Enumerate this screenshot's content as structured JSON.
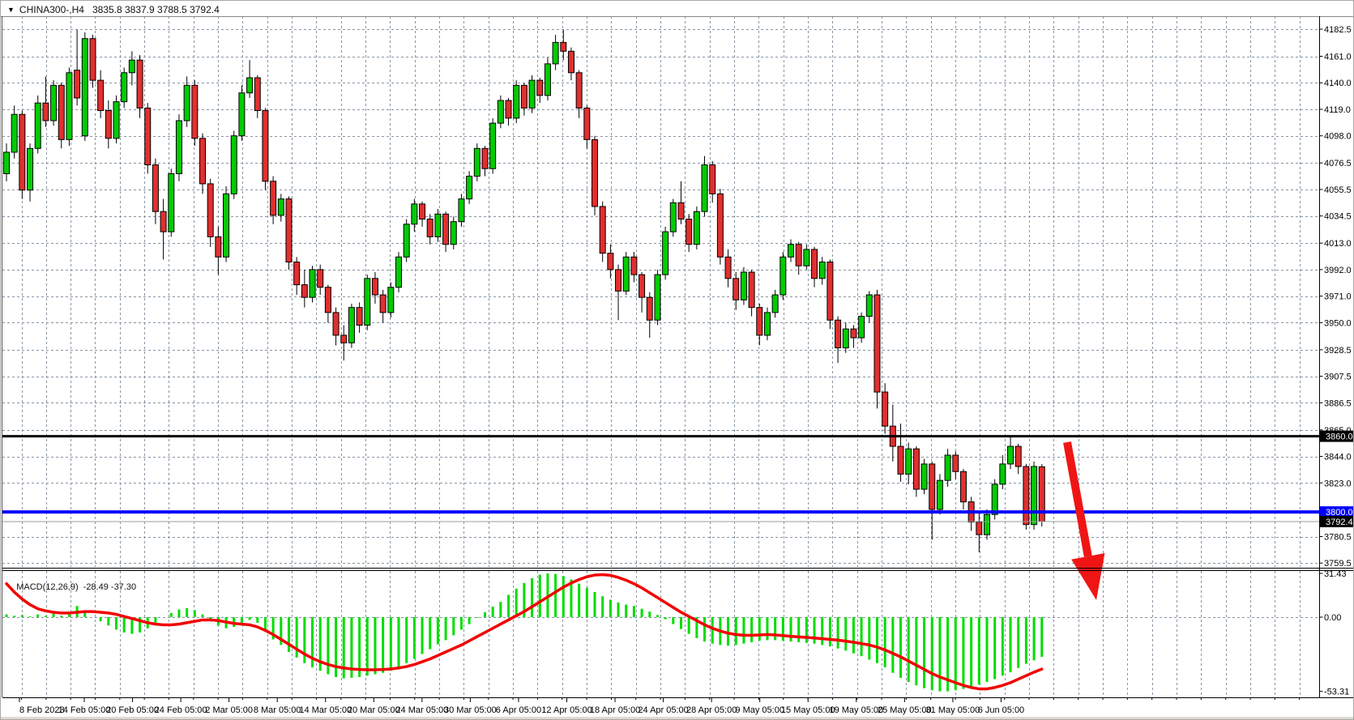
{
  "window": {
    "dropdown_icon": "▼",
    "title_symbol": "CHINA300-,H4",
    "title_ohlc": "3835.8 3837.9 3788.5 3792.4"
  },
  "macd_panel": {
    "label_name": "MACD(12,26,9)",
    "label_values": "-28.49 -37.30",
    "axis_labels": [
      "31.43",
      "0.00",
      "-53.31"
    ]
  },
  "price_axis": {
    "labels": [
      "4182.5",
      "4161.0",
      "4140.0",
      "4119.0",
      "4098.0",
      "4076.5",
      "4055.5",
      "4034.5",
      "4013.0",
      "3992.0",
      "3971.0",
      "3950.0",
      "3928.5",
      "3907.5",
      "3886.5",
      "3865.0",
      "3844.0",
      "3823.0",
      "3780.5",
      "3759.5"
    ],
    "special_lines": [
      {
        "label": "3860.0",
        "price": 3860.0,
        "color": "#000000",
        "kind": "black-hline"
      },
      {
        "label": "3800.0",
        "price": 3800.0,
        "color": "#0000ff",
        "kind": "blue-hline"
      },
      {
        "label": "3792.4",
        "price": 3792.4,
        "color": "#000000",
        "kind": "current-price"
      }
    ]
  },
  "time_axis": {
    "labels": [
      "8 Feb 2023",
      "14 Feb 05:00",
      "20 Feb 05:00",
      "24 Feb 05:00",
      "2 Mar 05:00",
      "8 Mar 05:00",
      "14 Mar 05:00",
      "20 Mar 05:00",
      "24 Mar 05:00",
      "30 Mar 05:00",
      "6 Apr 05:00",
      "12 Apr 05:00",
      "18 Apr 05:00",
      "24 Apr 05:00",
      "28 Apr 05:00",
      "9 May 05:00",
      "15 May 05:00",
      "19 May 05:00",
      "25 May 05:00",
      "31 May 05:00",
      "6 Jun 05:00"
    ]
  },
  "colors": {
    "up": "#00cc00",
    "down": "#e12f2f",
    "wick": "#000000",
    "grid": "#8795a3",
    "histogram": "#00dd00",
    "signal_line": "#f20000",
    "hline_black": "#000000",
    "hline_blue": "#0000ff",
    "current_price_line": "#9b9b9b",
    "arrow": "#f01515",
    "axis_text": "#000000",
    "label_box_text": "#ffffff",
    "frame": "#3c3c3c",
    "bottom_strip": "#dedbd3"
  },
  "chart_data": {
    "type": "candlestick",
    "title": "CHINA300-,H4",
    "timeframe": "H4",
    "last_quote": {
      "open": 3835.8,
      "high": 3837.9,
      "low": 3788.5,
      "close": 3792.4
    },
    "price_range": [
      3759.5,
      4182.5
    ],
    "grid": true,
    "candles_ohlc": [
      [
        4068,
        4092,
        4062,
        4085
      ],
      [
        4085,
        4122,
        4080,
        4115
      ],
      [
        4115,
        4118,
        4048,
        4055
      ],
      [
        4055,
        4092,
        4046,
        4088
      ],
      [
        4088,
        4130,
        4084,
        4124
      ],
      [
        4124,
        4145,
        4105,
        4110
      ],
      [
        4110,
        4142,
        4106,
        4138
      ],
      [
        4138,
        4140,
        4088,
        4095
      ],
      [
        4095,
        4152,
        4090,
        4148
      ],
      [
        4150,
        4182,
        4122,
        4128
      ],
      [
        4098,
        4180,
        4094,
        4175
      ],
      [
        4175,
        4178,
        4136,
        4142
      ],
      [
        4142,
        4150,
        4112,
        4118
      ],
      [
        4118,
        4126,
        4088,
        4096
      ],
      [
        4096,
        4130,
        4092,
        4125
      ],
      [
        4125,
        4152,
        4120,
        4148
      ],
      [
        4148,
        4165,
        4138,
        4158
      ],
      [
        4158,
        4162,
        4112,
        4120
      ],
      [
        4120,
        4124,
        4068,
        4075
      ],
      [
        4075,
        4080,
        4028,
        4038
      ],
      [
        4038,
        4048,
        4000,
        4022
      ],
      [
        4022,
        4072,
        4018,
        4068
      ],
      [
        4068,
        4115,
        4062,
        4110
      ],
      [
        4110,
        4145,
        4105,
        4138
      ],
      [
        4138,
        4142,
        4090,
        4096
      ],
      [
        4096,
        4100,
        4052,
        4060
      ],
      [
        4060,
        4064,
        4010,
        4018
      ],
      [
        4018,
        4026,
        3988,
        4002
      ],
      [
        4002,
        4058,
        3998,
        4052
      ],
      [
        4052,
        4102,
        4048,
        4098
      ],
      [
        4098,
        4138,
        4094,
        4132
      ],
      [
        4132,
        4158,
        4128,
        4144
      ],
      [
        4144,
        4146,
        4112,
        4118
      ],
      [
        4118,
        4120,
        4055,
        4062
      ],
      [
        4062,
        4066,
        4028,
        4035
      ],
      [
        4035,
        4052,
        4030,
        4048
      ],
      [
        4048,
        4050,
        3992,
        3998
      ],
      [
        3998,
        4002,
        3972,
        3980
      ],
      [
        3980,
        3992,
        3962,
        3970
      ],
      [
        3970,
        3995,
        3966,
        3992
      ],
      [
        3992,
        3996,
        3972,
        3978
      ],
      [
        3978,
        3980,
        3950,
        3958
      ],
      [
        3958,
        3962,
        3932,
        3940
      ],
      [
        3940,
        3948,
        3920,
        3934
      ],
      [
        3934,
        3965,
        3930,
        3962
      ],
      [
        3962,
        3966,
        3942,
        3948
      ],
      [
        3948,
        3988,
        3944,
        3985
      ],
      [
        3985,
        3990,
        3965,
        3972
      ],
      [
        3972,
        3976,
        3950,
        3958
      ],
      [
        3958,
        3982,
        3954,
        3978
      ],
      [
        3978,
        4006,
        3974,
        4002
      ],
      [
        4002,
        4032,
        3998,
        4028
      ],
      [
        4028,
        4048,
        4022,
        4044
      ],
      [
        4044,
        4046,
        4026,
        4032
      ],
      [
        4032,
        4036,
        4012,
        4018
      ],
      [
        4018,
        4040,
        4014,
        4036
      ],
      [
        4036,
        4038,
        4006,
        4012
      ],
      [
        4012,
        4034,
        4008,
        4030
      ],
      [
        4030,
        4052,
        4026,
        4048
      ],
      [
        4048,
        4070,
        4044,
        4066
      ],
      [
        4066,
        4092,
        4062,
        4088
      ],
      [
        4088,
        4090,
        4066,
        4072
      ],
      [
        4072,
        4112,
        4068,
        4108
      ],
      [
        4108,
        4130,
        4104,
        4126
      ],
      [
        4126,
        4128,
        4106,
        4112
      ],
      [
        4112,
        4142,
        4108,
        4138
      ],
      [
        4138,
        4140,
        4114,
        4120
      ],
      [
        4120,
        4146,
        4116,
        4142
      ],
      [
        4142,
        4144,
        4124,
        4130
      ],
      [
        4130,
        4160,
        4126,
        4155
      ],
      [
        4155,
        4178,
        4150,
        4172
      ],
      [
        4172,
        4182,
        4158,
        4165
      ],
      [
        4165,
        4168,
        4142,
        4148
      ],
      [
        4148,
        4150,
        4112,
        4120
      ],
      [
        4120,
        4122,
        4088,
        4095
      ],
      [
        4095,
        4098,
        4035,
        4042
      ],
      [
        4042,
        4046,
        3998,
        4005
      ],
      [
        4005,
        4012,
        3985,
        3992
      ],
      [
        3992,
        3996,
        3952,
        3975
      ],
      [
        3975,
        4006,
        3972,
        4002
      ],
      [
        4002,
        4006,
        3982,
        3988
      ],
      [
        3988,
        3990,
        3958,
        3970
      ],
      [
        3970,
        3974,
        3938,
        3952
      ],
      [
        3952,
        3992,
        3948,
        3988
      ],
      [
        3988,
        4026,
        3984,
        4022
      ],
      [
        4022,
        4048,
        4018,
        4045
      ],
      [
        4045,
        4062,
        4028,
        4032
      ],
      [
        4032,
        4036,
        4006,
        4012
      ],
      [
        4012,
        4042,
        4008,
        4038
      ],
      [
        4038,
        4082,
        4034,
        4075
      ],
      [
        4075,
        4078,
        4045,
        4052
      ],
      [
        4052,
        4056,
        3996,
        4002
      ],
      [
        4002,
        4008,
        3978,
        3985
      ],
      [
        3985,
        3990,
        3960,
        3968
      ],
      [
        3968,
        3994,
        3964,
        3990
      ],
      [
        3990,
        3992,
        3955,
        3962
      ],
      [
        3962,
        3965,
        3932,
        3940
      ],
      [
        3940,
        3962,
        3936,
        3958
      ],
      [
        3958,
        3976,
        3954,
        3972
      ],
      [
        3972,
        4006,
        3968,
        4002
      ],
      [
        4002,
        4016,
        3998,
        4012
      ],
      [
        4012,
        4014,
        3988,
        3995
      ],
      [
        3995,
        4012,
        3992,
        4008
      ],
      [
        4008,
        4010,
        3978,
        3985
      ],
      [
        3985,
        4002,
        3980,
        3998
      ],
      [
        3998,
        4000,
        3945,
        3952
      ],
      [
        3952,
        3955,
        3918,
        3930
      ],
      [
        3930,
        3950,
        3926,
        3945
      ],
      [
        3945,
        3948,
        3930,
        3938
      ],
      [
        3938,
        3958,
        3934,
        3955
      ],
      [
        3955,
        3975,
        3950,
        3972
      ],
      [
        3972,
        3976,
        3882,
        3895
      ],
      [
        3895,
        3902,
        3862,
        3868
      ],
      [
        3868,
        3885,
        3840,
        3852
      ],
      [
        3852,
        3870,
        3824,
        3830
      ],
      [
        3830,
        3855,
        3822,
        3850
      ],
      [
        3850,
        3852,
        3812,
        3818
      ],
      [
        3818,
        3842,
        3814,
        3838
      ],
      [
        3838,
        3840,
        3778,
        3802
      ],
      [
        3802,
        3830,
        3798,
        3825
      ],
      [
        3825,
        3850,
        3820,
        3845
      ],
      [
        3845,
        3848,
        3826,
        3832
      ],
      [
        3832,
        3834,
        3802,
        3808
      ],
      [
        3808,
        3812,
        3785,
        3792
      ],
      [
        3792,
        3800,
        3768,
        3782
      ],
      [
        3782,
        3802,
        3778,
        3798
      ],
      [
        3798,
        3826,
        3794,
        3822
      ],
      [
        3822,
        3845,
        3818,
        3838
      ],
      [
        3838,
        3860,
        3834,
        3852
      ],
      [
        3852,
        3854,
        3830,
        3836
      ],
      [
        3836,
        3838,
        3786,
        3790
      ],
      [
        3790,
        3840,
        3786,
        3836
      ],
      [
        3835.8,
        3837.9,
        3788.5,
        3792.4
      ]
    ],
    "indicator": {
      "name": "MACD(12,26,9)",
      "macd_value": -28.49,
      "signal_value": -37.3,
      "range": [
        -53.31,
        31.43
      ],
      "histogram": [
        2,
        1,
        1.5,
        0.5,
        2,
        1,
        2.5,
        1,
        3,
        8,
        4,
        0,
        -3,
        -6,
        -9,
        -11,
        -12,
        -11,
        -8,
        -4,
        0,
        3,
        5.5,
        6.5,
        5,
        2,
        -2,
        -6,
        -8,
        -7,
        -4,
        -2,
        -4,
        -10,
        -16,
        -20,
        -25,
        -29,
        -33,
        -36,
        -38.5,
        -41,
        -43,
        -44,
        -43.5,
        -43,
        -42,
        -41,
        -40,
        -38.5,
        -36,
        -33,
        -30,
        -26.5,
        -23,
        -19.5,
        -16.5,
        -13,
        -9,
        -5,
        -0.5,
        3.5,
        7.5,
        11,
        16,
        20.5,
        24.5,
        28,
        30.5,
        31.4,
        31,
        29.5,
        27,
        24,
        21,
        18,
        15,
        12.5,
        10.5,
        9,
        8,
        6,
        4,
        1.5,
        -1.5,
        -5,
        -8.5,
        -12,
        -15,
        -17.5,
        -19,
        -20,
        -20.5,
        -20,
        -19,
        -18,
        -17,
        -16.5,
        -16.5,
        -17,
        -17.5,
        -18,
        -18.5,
        -19,
        -20,
        -21,
        -22.5,
        -24,
        -26,
        -28,
        -30.5,
        -33,
        -36,
        -40,
        -43.5,
        -46.5,
        -49,
        -51,
        -52.5,
        -53.3,
        -53.3,
        -52.5,
        -51.5,
        -50,
        -48.5,
        -46.5,
        -44.5,
        -42,
        -39.5,
        -36.5,
        -33.5,
        -31,
        -28.5
      ],
      "signal": [
        24,
        18,
        13,
        9,
        6,
        4.5,
        3.5,
        3,
        3,
        3.5,
        4,
        4,
        3.5,
        3,
        2,
        0.5,
        -1,
        -2.5,
        -4,
        -5,
        -5.5,
        -5.5,
        -5,
        -4,
        -3,
        -2,
        -2,
        -2.5,
        -3.5,
        -4.5,
        -5,
        -5.5,
        -7,
        -9.5,
        -12.5,
        -16,
        -19.5,
        -23,
        -26.5,
        -29.5,
        -32,
        -34,
        -35.5,
        -36.5,
        -37.2,
        -37.6,
        -37.8,
        -37.8,
        -37.6,
        -37.2,
        -36.5,
        -35.5,
        -34,
        -32,
        -30,
        -27.5,
        -25,
        -22.5,
        -20,
        -17,
        -14,
        -11,
        -8,
        -5,
        -2,
        1,
        4,
        7.5,
        11,
        14.5,
        18,
        21.5,
        24.5,
        27,
        29,
        30.2,
        30.5,
        30,
        28.5,
        26.5,
        24,
        21,
        17.5,
        14,
        10.5,
        7,
        3.5,
        0.5,
        -2.5,
        -5.5,
        -8,
        -10,
        -11.5,
        -12.5,
        -13,
        -13,
        -12.8,
        -12.5,
        -12.8,
        -13.2,
        -13.8,
        -14.2,
        -14.5,
        -15,
        -15.5,
        -16,
        -16.5,
        -17.2,
        -18,
        -19,
        -20,
        -21.5,
        -23.5,
        -26,
        -28.5,
        -31.5,
        -34.5,
        -37.5,
        -40.5,
        -43,
        -45,
        -47,
        -49,
        -50.5,
        -51.5,
        -51.5,
        -50.5,
        -49,
        -47,
        -44.5,
        -42,
        -39.5,
        -37.3
      ]
    },
    "annotations": {
      "hline_black": 3860.0,
      "hline_blue": 3800.0,
      "current_price": 3792.4,
      "down_arrow": {
        "shaft_from": [
          1316,
          545
        ],
        "shaft_to": [
          1341.8,
          685.9
        ],
        "tip": [
          1352,
          740
        ]
      }
    }
  }
}
